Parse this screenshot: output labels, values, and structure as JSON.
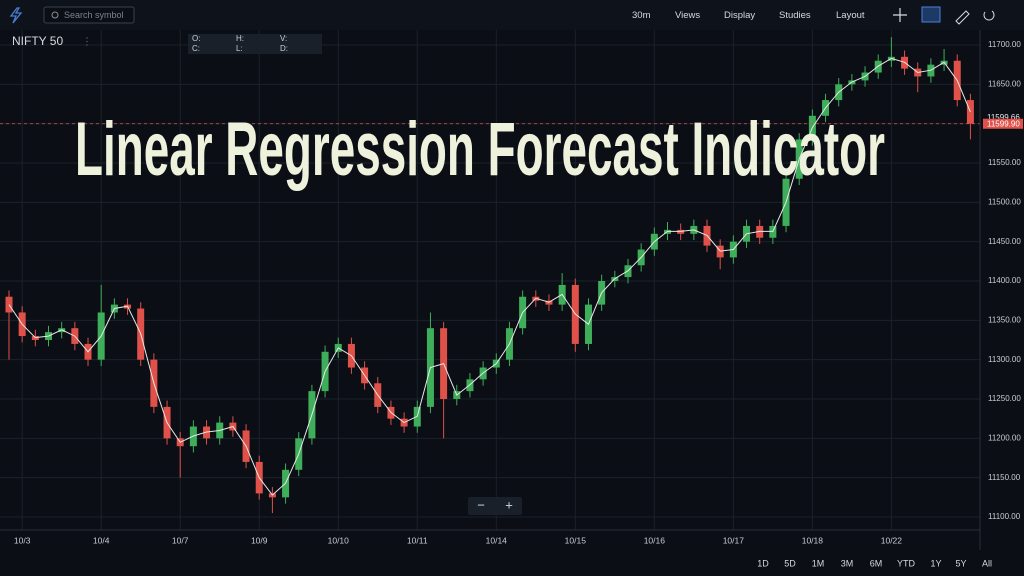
{
  "toolbar": {
    "search": "Search symbol",
    "menus": [
      "30m",
      "Views",
      "Display",
      "Studies",
      "Layout"
    ]
  },
  "ranges": [
    "1D",
    "5D",
    "1M",
    "3M",
    "6M",
    "YTD",
    "1Y",
    "5Y",
    "All"
  ],
  "zoom": [
    "−",
    "+"
  ],
  "chart_data": {
    "type": "candlestick",
    "title": "Linear Regression Forecast Indicator",
    "symbol": "NIFTY 50",
    "ohlc_legend": [
      "O:",
      "H:",
      "V:",
      "C:",
      "L:",
      "D:"
    ],
    "categories": [
      null,
      "10/3",
      null,
      null,
      null,
      null,
      null,
      "10/4",
      null,
      null,
      null,
      null,
      null,
      "10/7",
      null,
      null,
      null,
      null,
      null,
      "10/9",
      null,
      null,
      null,
      null,
      null,
      "10/10",
      null,
      null,
      null,
      null,
      null,
      "10/11",
      null,
      null,
      null,
      null,
      null,
      "10/14",
      null,
      null,
      null,
      null,
      null,
      "10/15",
      null,
      null,
      null,
      null,
      null,
      "10/16",
      null,
      null,
      null,
      null,
      null,
      "10/17",
      null,
      null,
      null,
      null,
      null,
      "10/18",
      null,
      null,
      null,
      null,
      null,
      "10/22",
      null,
      null,
      null,
      null,
      null,
      null
    ],
    "open": [
      11380,
      11360,
      11330,
      11325,
      11335,
      11340,
      11320,
      11300,
      11360,
      11370,
      11365,
      11300,
      11240,
      11200,
      11190,
      11215,
      11200,
      11220,
      11210,
      11170,
      11130,
      11125,
      11160,
      11200,
      11260,
      11310,
      11320,
      11290,
      11270,
      11240,
      11225,
      11215,
      11240,
      11340,
      11250,
      11260,
      11275,
      11290,
      11300,
      11340,
      11380,
      11375,
      11370,
      11395,
      11320,
      11370,
      11400,
      11405,
      11420,
      11440,
      11460,
      11465,
      11460,
      11470,
      11445,
      11430,
      11450,
      11470,
      11455,
      11470,
      11530,
      11580,
      11610,
      11630,
      11650,
      11655,
      11665,
      11680,
      11685,
      11670,
      11660,
      11675,
      11680,
      11630
    ],
    "high": [
      11388,
      11368,
      11338,
      11343,
      11348,
      11348,
      11328,
      11395,
      11378,
      11378,
      11373,
      11308,
      11248,
      11208,
      11223,
      11223,
      11228,
      11228,
      11218,
      11178,
      11138,
      11168,
      11208,
      11268,
      11318,
      11328,
      11328,
      11298,
      11278,
      11248,
      11233,
      11248,
      11360,
      11348,
      11268,
      11283,
      11298,
      11308,
      11348,
      11388,
      11388,
      11383,
      11410,
      11403,
      11378,
      11408,
      11413,
      11428,
      11448,
      11468,
      11475,
      11473,
      11478,
      11478,
      11453,
      11458,
      11478,
      11478,
      11478,
      11538,
      11588,
      11618,
      11638,
      11658,
      11663,
      11673,
      11688,
      11710,
      11693,
      11678,
      11683,
      11695,
      11688,
      11638
    ],
    "low": [
      11300,
      11322,
      11317,
      11317,
      11327,
      11312,
      11292,
      11292,
      11352,
      11357,
      11292,
      11232,
      11192,
      11150,
      11182,
      11192,
      11192,
      11202,
      11162,
      11122,
      11105,
      11117,
      11152,
      11192,
      11252,
      11302,
      11282,
      11262,
      11232,
      11217,
      11207,
      11207,
      11232,
      11200,
      11242,
      11252,
      11267,
      11282,
      11292,
      11332,
      11367,
      11362,
      11362,
      11310,
      11312,
      11362,
      11392,
      11397,
      11412,
      11432,
      11452,
      11452,
      11452,
      11437,
      11415,
      11422,
      11442,
      11447,
      11447,
      11462,
      11522,
      11572,
      11602,
      11622,
      11642,
      11647,
      11657,
      11672,
      11662,
      11640,
      11652,
      11667,
      11622,
      11580
    ],
    "close": [
      11360,
      11330,
      11325,
      11335,
      11340,
      11320,
      11300,
      11360,
      11370,
      11365,
      11300,
      11240,
      11200,
      11190,
      11215,
      11200,
      11220,
      11210,
      11170,
      11130,
      11125,
      11160,
      11200,
      11260,
      11310,
      11320,
      11290,
      11270,
      11240,
      11225,
      11215,
      11240,
      11340,
      11250,
      11260,
      11275,
      11290,
      11300,
      11340,
      11380,
      11375,
      11370,
      11395,
      11320,
      11370,
      11400,
      11405,
      11420,
      11440,
      11460,
      11465,
      11460,
      11470,
      11445,
      11430,
      11450,
      11470,
      11455,
      11470,
      11530,
      11580,
      11610,
      11630,
      11650,
      11655,
      11665,
      11680,
      11685,
      11670,
      11660,
      11675,
      11680,
      11630,
      11600
    ],
    "line": {
      "color": "#e8e8e8",
      "values": [
        11370,
        11345,
        11328,
        11330,
        11338,
        11330,
        11310,
        11330,
        11365,
        11368,
        11333,
        11270,
        11220,
        11195,
        11203,
        11208,
        11210,
        11215,
        11190,
        11150,
        11128,
        11143,
        11180,
        11230,
        11285,
        11315,
        11305,
        11280,
        11255,
        11233,
        11220,
        11228,
        11290,
        11295,
        11255,
        11268,
        11283,
        11295,
        11320,
        11360,
        11378,
        11373,
        11383,
        11358,
        11345,
        11385,
        11403,
        11413,
        11430,
        11450,
        11463,
        11463,
        11465,
        11458,
        11438,
        11440,
        11460,
        11463,
        11463,
        11500,
        11555,
        11595,
        11620,
        11640,
        11653,
        11660,
        11673,
        11683,
        11678,
        11665,
        11668,
        11678,
        11655,
        11615
      ]
    },
    "up_color": "#3fae5b",
    "down_color": "#e0514a",
    "ylim": [
      11080,
      11720
    ],
    "yticks": [
      {
        "value": 11100,
        "label": "11100.00"
      },
      {
        "value": 11150,
        "label": "11150.00"
      },
      {
        "value": 11200,
        "label": "11200.00"
      },
      {
        "value": 11250,
        "label": "11250.00"
      },
      {
        "value": 11300,
        "label": "11300.00"
      },
      {
        "value": 11350,
        "label": "11350.00"
      },
      {
        "value": 11400,
        "label": "11400.00"
      },
      {
        "value": 11450,
        "label": "11450.00"
      },
      {
        "value": 11500,
        "label": "11500.00"
      },
      {
        "value": 11550,
        "label": "11550.00"
      },
      {
        "value": 11600,
        "label": "11600.00"
      },
      {
        "value": 11650,
        "label": "11650.00"
      },
      {
        "value": 11700,
        "label": "11700.00"
      }
    ],
    "grid": true,
    "forecast_price": {
      "value": 11599.66,
      "label": "11599.66"
    },
    "last_price": {
      "value": 11599.9,
      "label": "11599.90"
    }
  }
}
